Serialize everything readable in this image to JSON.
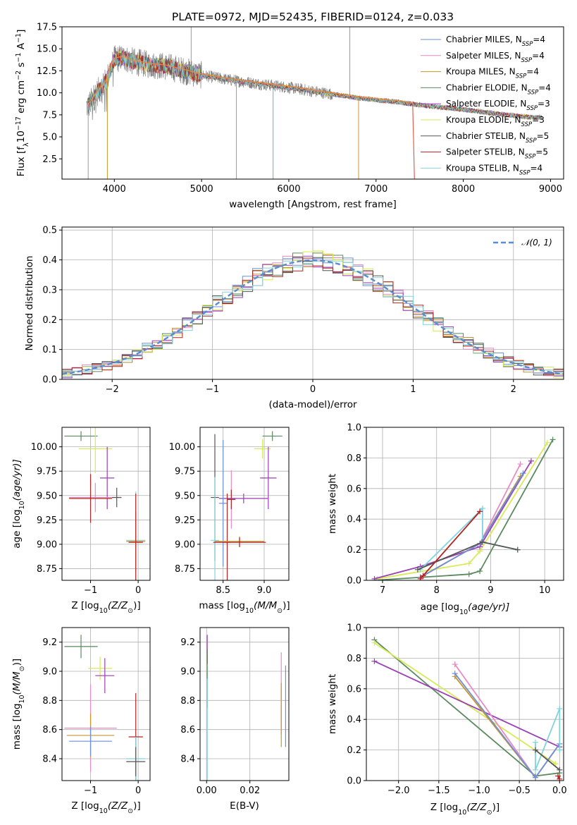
{
  "colors": {
    "Chabrier MILES": "#6f8fd8",
    "Salpeter MILES": "#e88ac4",
    "Kroupa MILES": "#c8962a",
    "Chabrier ELODIE": "#5a8a5e",
    "Salpeter ELODIE": "#9b3fb5",
    "Kroupa ELODIE": "#d6eb55",
    "Chabrier STELIB": "#555555",
    "Salpeter STELIB": "#b52323",
    "Kroupa STELIB": "#82d4dc",
    "data": "#808080",
    "orange": "#f08a3c",
    "gauss": "#5b8bd0"
  },
  "chart_data": [
    {
      "id": "spectrum",
      "type": "line",
      "title": "PLATE=0972, MJD=52435, FIBERID=0124, z=0.033",
      "xlabel": "wavelength [Angstrom, rest frame]",
      "ylabel_parts": [
        "Flux [f",
        "λ",
        "10",
        "−17",
        " erg cm",
        "−2",
        " s",
        "−1",
        " A",
        "−1",
        "]"
      ],
      "xlim": [
        3400,
        9150
      ],
      "ylim": [
        0.2,
        17.5
      ],
      "xticks": [
        "4000",
        "5000",
        "6000",
        "7000",
        "8000",
        "9000"
      ],
      "yticks": [
        "2.5",
        "5.0",
        "7.5",
        "10.0",
        "12.5",
        "15.0",
        "17.5"
      ],
      "legend_position": "top-right",
      "series": [
        {
          "name": "Chabrier MILES",
          "nssp": "4"
        },
        {
          "name": "Salpeter MILES",
          "nssp": "4"
        },
        {
          "name": "Kroupa MILES",
          "nssp": "4"
        },
        {
          "name": "Chabrier ELODIE",
          "nssp": "4"
        },
        {
          "name": "Salpeter ELODIE",
          "nssp": "3"
        },
        {
          "name": "Kroupa ELODIE",
          "nssp": "3"
        },
        {
          "name": "Chabrier STELIB",
          "nssp": "5"
        },
        {
          "name": "Salpeter STELIB",
          "nssp": "5"
        },
        {
          "name": "Kroupa STELIB",
          "nssp": "4"
        }
      ],
      "nssp_label": "N",
      "nssp_sub": "SSP",
      "continuum": {
        "x": [
          3700,
          3800,
          3900,
          4000,
          4100,
          4200,
          4400,
          4600,
          4800,
          5000,
          5300,
          5600,
          6000,
          6400,
          6800,
          7200,
          7600,
          8000,
          8400,
          8800
        ],
        "y": [
          8.5,
          10.0,
          11.2,
          13.8,
          14.0,
          13.6,
          13.2,
          13.0,
          12.5,
          12.0,
          11.5,
          11.1,
          10.6,
          10.0,
          9.4,
          9.0,
          8.5,
          8.1,
          7.6,
          7.2
        ]
      }
    },
    {
      "id": "residuals",
      "type": "histogram",
      "xlabel": "(data-model)/error",
      "ylabel": "Normed distribution",
      "xlim": [
        -2.5,
        2.5
      ],
      "ylim": [
        0,
        0.51
      ],
      "xticks": [
        "−2",
        "−1",
        "0",
        "1",
        "2"
      ],
      "yticks": [
        "0.0",
        "0.1",
        "0.2",
        "0.3",
        "0.4",
        "0.5"
      ],
      "gauss_label": "𝒩(0, 1)",
      "legend_position": "top-right"
    },
    {
      "id": "age-vs-Z",
      "type": "errorbar",
      "xlabel_parts": [
        "Z [log",
        "10",
        "(Z/Z",
        "⊙",
        ")]"
      ],
      "ylabel_parts": [
        "age  [log",
        "10",
        "(age/yr)]"
      ],
      "xlim": [
        -1.6,
        0.25
      ],
      "ylim": [
        8.63,
        10.2
      ],
      "xticks": [
        "−1",
        "0"
      ],
      "yticks": [
        "8.75",
        "9.00",
        "9.25",
        "9.50",
        "9.75",
        "10.00"
      ],
      "points": [
        {
          "s": "Chabrier ELODIE",
          "x": -1.2,
          "xe": 0.35,
          "y": 10.11,
          "ye": 0.05
        },
        {
          "s": "Kroupa ELODIE",
          "x": -0.9,
          "xe": 0.35,
          "y": 9.98,
          "ye": 0.25
        },
        {
          "s": "Salpeter ELODIE",
          "x": -0.65,
          "xe": 0.15,
          "y": 9.68,
          "ye": 0.32
        },
        {
          "s": "Salpeter MILES",
          "x": -0.9,
          "xe": 0.55,
          "y": 9.48,
          "ye": 0.15
        },
        {
          "s": "Salpeter STELIB",
          "x": -1.0,
          "xe": 0.45,
          "y": 9.47,
          "ye": 0.25
        },
        {
          "s": "Chabrier STELIB",
          "x": -0.45,
          "xe": 0.1,
          "y": 9.48,
          "ye": 0.1
        },
        {
          "s": "Kroupa STELIB",
          "x": -0.05,
          "xe": 0.2,
          "y": 9.04,
          "ye": 0.5
        },
        {
          "s": "Kroupa MILES",
          "x": -0.05,
          "xe": 0.2,
          "y": 9.03,
          "ye": 0.3
        },
        {
          "s": "Salpeter STELIB",
          "x": -0.05,
          "xe": 0.15,
          "y": 9.02,
          "ye": 0.5
        }
      ]
    },
    {
      "id": "age-vs-mass",
      "type": "errorbar",
      "xlabel_parts": [
        "mass [log",
        "10",
        "(M/M",
        "⊙",
        ")]"
      ],
      "xlim": [
        8.22,
        9.3
      ],
      "ylim": [
        8.63,
        10.2
      ],
      "xticks": [
        "8.5",
        "9.0"
      ],
      "yticks": [
        "8.75",
        "9.00",
        "9.25",
        "9.50",
        "9.75",
        "10.00"
      ],
      "points": [
        {
          "s": "Chabrier ELODIE",
          "x": 9.1,
          "xe": 0.12,
          "y": 10.11,
          "ye": 0.05
        },
        {
          "s": "Kroupa ELODIE",
          "x": 8.98,
          "xe": 0.1,
          "y": 9.98,
          "ye": 0.1
        },
        {
          "s": "Salpeter ELODIE",
          "x": 9.05,
          "xe": 0.1,
          "y": 9.68,
          "ye": 0.32
        },
        {
          "s": "Chabrier STELIB",
          "x": 8.4,
          "xe": 0.05,
          "y": 9.48,
          "ye": 0.65
        },
        {
          "s": "Salpeter MILES",
          "x": 8.6,
          "xe": 0.05,
          "y": 9.46,
          "ye": 0.3
        },
        {
          "s": "Salpeter STELIB",
          "x": 8.6,
          "xe": 0.05,
          "y": 9.46,
          "ye": 0.1
        },
        {
          "s": "Salpeter ELODIE",
          "x": 8.75,
          "xe": 0.3,
          "y": 9.47,
          "ye": 0.05
        },
        {
          "s": "Chabrier MILES",
          "x": 8.5,
          "xe": 0.05,
          "y": 9.42,
          "ye": 0.65
        },
        {
          "s": "Kroupa STELIB",
          "x": 8.4,
          "xe": 0.05,
          "y": 9.04,
          "ye": 0.65
        },
        {
          "s": "Salpeter STELIB",
          "x": 8.55,
          "xe": 0.05,
          "y": 9.02,
          "ye": 0.5
        },
        {
          "s": "Kroupa MILES",
          "x": 8.7,
          "xe": 0.3,
          "y": 9.03,
          "ye": 0.05
        },
        {
          "s": "Salpeter STELIB",
          "x": 8.7,
          "xe": 0.32,
          "y": 9.02,
          "ye": 0.05
        }
      ]
    },
    {
      "id": "weight-vs-age",
      "type": "line",
      "xlabel_parts": [
        "age  [log",
        "10",
        "(age/yr)]"
      ],
      "ylabel": "mass weight",
      "xlim": [
        6.7,
        10.35
      ],
      "ylim": [
        0,
        1.0
      ],
      "xticks": [
        "7",
        "8",
        "9",
        "10"
      ],
      "yticks": [
        "0.0",
        "0.2",
        "0.4",
        "0.6",
        "0.8",
        "1.0"
      ],
      "series": [
        {
          "s": "Chabrier ELODIE",
          "pts": [
            [
              6.85,
              0
            ],
            [
              8.6,
              0.04
            ],
            [
              8.8,
              0.06
            ],
            [
              10.15,
              0.92
            ]
          ]
        },
        {
          "s": "Kroupa ELODIE",
          "pts": [
            [
              6.9,
              0.01
            ],
            [
              8.6,
              0.11
            ],
            [
              8.8,
              0.19
            ],
            [
              10.05,
              0.9
            ]
          ]
        },
        {
          "s": "Salpeter ELODIE",
          "pts": [
            [
              6.85,
              0.01
            ],
            [
              7.7,
              0.09
            ],
            [
              8.8,
              0.22
            ],
            [
              9.75,
              0.78
            ]
          ]
        },
        {
          "s": "Salpeter MILES",
          "pts": [
            [
              7.7,
              0.02
            ],
            [
              8.8,
              0.24
            ],
            [
              9.55,
              0.76
            ]
          ]
        },
        {
          "s": "Kroupa MILES",
          "pts": [
            [
              7.7,
              0.02
            ],
            [
              8.8,
              0.24
            ],
            [
              9.55,
              0.68
            ]
          ]
        },
        {
          "s": "Chabrier MILES",
          "pts": [
            [
              7.7,
              0.02
            ],
            [
              8.8,
              0.24
            ],
            [
              9.6,
              0.7
            ]
          ]
        },
        {
          "s": "Kroupa STELIB",
          "pts": [
            [
              7.7,
              0.07
            ],
            [
              8.85,
              0.47
            ],
            [
              8.85,
              0.25
            ],
            [
              9.5,
              0.2
            ]
          ]
        },
        {
          "s": "Chabrier STELIB",
          "pts": [
            [
              7.65,
              0.07
            ],
            [
              8.85,
              0.25
            ],
            [
              9.5,
              0.2
            ]
          ]
        },
        {
          "s": "Salpeter STELIB",
          "pts": [
            [
              7.7,
              0.01
            ],
            [
              8.8,
              0.45
            ],
            [
              7.75,
              0.03
            ]
          ]
        }
      ]
    },
    {
      "id": "mass-vs-Z",
      "type": "errorbar",
      "xlabel_parts": [
        "Z [log",
        "10",
        "(Z/Z",
        "⊙",
        ")]"
      ],
      "ylabel_parts": [
        "mass [log",
        "10",
        "(M/M",
        "⊙",
        ")]"
      ],
      "xlim": [
        -1.6,
        0.25
      ],
      "ylim": [
        8.25,
        9.3
      ],
      "xticks": [
        "−1",
        "0"
      ],
      "yticks": [
        "8.4",
        "8.6",
        "8.8",
        "9.0",
        "9.2"
      ],
      "points": [
        {
          "s": "Chabrier ELODIE",
          "x": -1.2,
          "xe": 0.35,
          "y": 9.17,
          "ye": 0.08
        },
        {
          "s": "Kroupa ELODIE",
          "x": -0.8,
          "xe": 0.25,
          "y": 9.02,
          "ye": 0.08
        },
        {
          "s": "Salpeter ELODIE",
          "x": -0.7,
          "xe": 0.2,
          "y": 8.97,
          "ye": 0.12
        },
        {
          "s": "Salpeter MILES",
          "x": -1.0,
          "xe": 0.55,
          "y": 8.61,
          "ye": 0.3
        },
        {
          "s": "Kroupa MILES",
          "x": -1.0,
          "xe": 0.5,
          "y": 8.56,
          "ye": 0.15
        },
        {
          "s": "Chabrier MILES",
          "x": -1.0,
          "xe": 0.45,
          "y": 8.52,
          "ye": 0.1
        },
        {
          "s": "Salpeter STELIB",
          "x": -0.05,
          "xe": 0.15,
          "y": 8.55,
          "ye": 0.3
        },
        {
          "s": "Kroupa STELIB",
          "x": -0.05,
          "xe": 0.2,
          "y": 8.4,
          "ye": 0.15
        },
        {
          "s": "Chabrier STELIB",
          "x": -0.05,
          "xe": 0.2,
          "y": 8.38,
          "ye": 0.1
        }
      ]
    },
    {
      "id": "mass-vs-ebv",
      "type": "errorbar",
      "xlabel": "E(B-V)",
      "xlim": [
        -0.003,
        0.038
      ],
      "ylim": [
        8.25,
        9.3
      ],
      "xticks": [
        "0.00",
        "0.02"
      ],
      "yticks": [
        "8.4",
        "8.6",
        "8.8",
        "9.0",
        "9.2"
      ],
      "points": [
        {
          "s": "Salpeter ELODIE",
          "x": 0.0003,
          "xe": 0,
          "y": 9.15,
          "ye": 0.1
        },
        {
          "s": "Salpeter STELIB",
          "x": 0.0003,
          "xe": 0,
          "y": 9.1,
          "ye": 0.05
        },
        {
          "s": "Chabrier ELODIE",
          "x": 0.0003,
          "xe": 0,
          "y": 8.95,
          "ye": 0.2
        },
        {
          "s": "Kroupa STELIB",
          "x": 0.0003,
          "xe": 0,
          "y": 8.6,
          "ye": 0.35
        },
        {
          "s": "Salpeter MILES",
          "x": 0.0345,
          "xe": 0,
          "y": 8.85,
          "ye": 0.28
        },
        {
          "s": "Kroupa MILES",
          "x": 0.0345,
          "xe": 0,
          "y": 8.7,
          "ye": 0.22
        },
        {
          "s": "Chabrier MILES",
          "x": 0.0365,
          "xe": 0,
          "y": 8.76,
          "ye": 0.28
        }
      ]
    },
    {
      "id": "weight-vs-Z",
      "type": "line",
      "xlabel_parts": [
        "Z [log",
        "10",
        "(Z/Z",
        "⊙",
        ")]"
      ],
      "ylabel": "mass weight",
      "xlim": [
        -2.4,
        0.05
      ],
      "ylim": [
        0,
        1.0
      ],
      "xticks": [
        "−2.0",
        "−1.5",
        "−1.0",
        "−0.5",
        "0.0"
      ],
      "yticks": [
        "0.0",
        "0.2",
        "0.4",
        "0.6",
        "0.8",
        "1.0"
      ],
      "series": [
        {
          "s": "Chabrier ELODIE",
          "pts": [
            [
              -2.3,
              0.92
            ],
            [
              -0.3,
              0.03
            ],
            [
              0.0,
              0.05
            ]
          ]
        },
        {
          "s": "Kroupa ELODIE",
          "pts": [
            [
              -2.3,
              0.9
            ],
            [
              -0.05,
              0.11
            ]
          ]
        },
        {
          "s": "Salpeter ELODIE",
          "pts": [
            [
              -2.3,
              0.78
            ],
            [
              0.0,
              0.22
            ]
          ]
        },
        {
          "s": "Salpeter MILES",
          "pts": [
            [
              -1.3,
              0.76
            ],
            [
              -1.3,
              0.76
            ],
            [
              -0.3,
              0.02
            ],
            [
              0.0,
              0.24
            ]
          ]
        },
        {
          "s": "Kroupa MILES",
          "pts": [
            [
              -1.3,
              0.68
            ],
            [
              -0.3,
              0.02
            ],
            [
              0.0,
              0.24
            ]
          ]
        },
        {
          "s": "Chabrier MILES",
          "pts": [
            [
              -1.3,
              0.7
            ],
            [
              -0.3,
              0.02
            ],
            [
              0.0,
              0.24
            ]
          ]
        },
        {
          "s": "Kroupa STELIB",
          "pts": [
            [
              -0.3,
              0.25
            ],
            [
              -0.3,
              0.07
            ],
            [
              0.0,
              0.47
            ],
            [
              0.0,
              0.2
            ]
          ]
        },
        {
          "s": "Chabrier STELIB",
          "pts": [
            [
              -0.3,
              0.2
            ],
            [
              0.0,
              0.07
            ]
          ]
        },
        {
          "s": "Salpeter STELIB",
          "pts": [
            [
              -0.02,
              0.03
            ],
            [
              0.0,
              0.01
            ]
          ]
        }
      ]
    }
  ]
}
